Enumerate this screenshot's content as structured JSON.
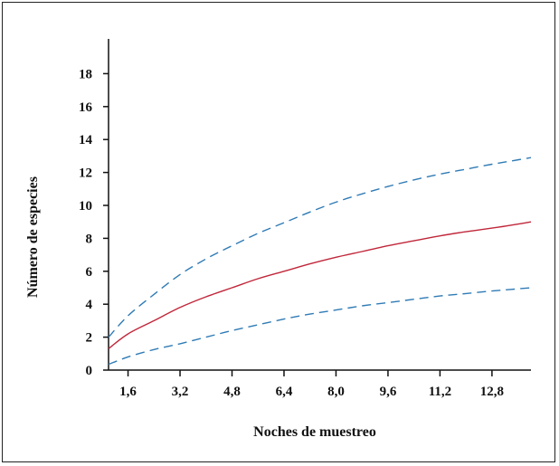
{
  "chart_data": {
    "type": "line",
    "title": "",
    "xlabel": "Noches de muestreo",
    "ylabel": "Número de especies",
    "x_ticks": [
      "1,6",
      "3,2",
      "4,8",
      "6,4",
      "8,0",
      "9,6",
      "11,2",
      "12,8"
    ],
    "x_tick_values": [
      1.6,
      3.2,
      4.8,
      6.4,
      8.0,
      9.6,
      11.2,
      12.8
    ],
    "y_ticks": [
      "0",
      "2",
      "4",
      "6",
      "8",
      "10",
      "12",
      "14",
      "16",
      "18"
    ],
    "y_tick_values": [
      0,
      2,
      4,
      6,
      8,
      10,
      12,
      14,
      16,
      18
    ],
    "xlim": [
      1.0,
      14.0
    ],
    "ylim": [
      0,
      20
    ],
    "grid": false,
    "legend": "none",
    "x": [
      1.0,
      1.6,
      2.4,
      3.2,
      4.0,
      4.8,
      5.6,
      6.4,
      7.2,
      8.0,
      8.8,
      9.6,
      10.4,
      11.2,
      12.0,
      12.8,
      13.4,
      14.0
    ],
    "series": [
      {
        "color": "#c0273a",
        "dash": "solid",
        "values": [
          1.3,
          2.2,
          3.0,
          3.8,
          4.45,
          5.0,
          5.55,
          6.0,
          6.45,
          6.85,
          7.2,
          7.55,
          7.85,
          8.15,
          8.4,
          8.62,
          8.8,
          9.0
        ]
      },
      {
        "color": "#2f7bb5",
        "dash": "dashed",
        "values": [
          2.0,
          3.3,
          4.6,
          5.8,
          6.75,
          7.55,
          8.3,
          8.95,
          9.6,
          10.2,
          10.7,
          11.15,
          11.55,
          11.9,
          12.2,
          12.5,
          12.7,
          12.9
        ]
      },
      {
        "color": "#2f7bb5",
        "dash": "dashed",
        "values": [
          0.35,
          0.8,
          1.25,
          1.6,
          2.0,
          2.4,
          2.75,
          3.1,
          3.4,
          3.65,
          3.9,
          4.1,
          4.3,
          4.5,
          4.65,
          4.8,
          4.9,
          5.0
        ]
      }
    ]
  }
}
